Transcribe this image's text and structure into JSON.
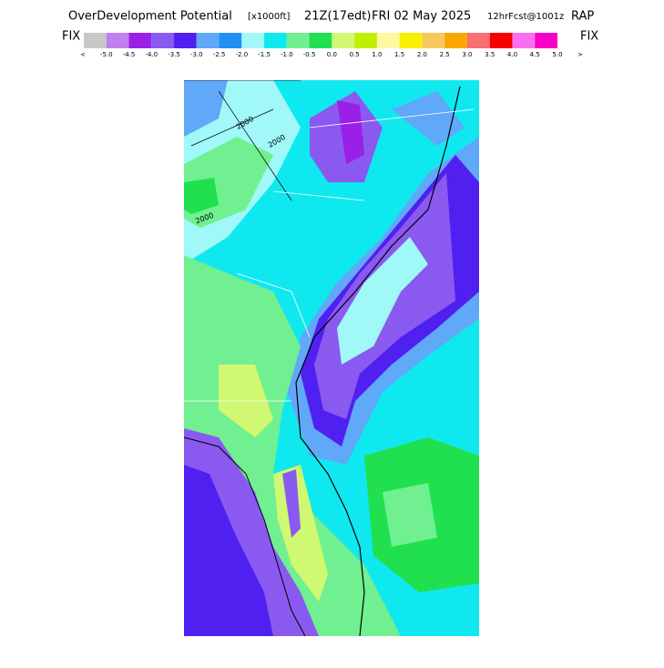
{
  "header": {
    "title": "OverDevelopment Potential",
    "units": "[x1000ft]",
    "time": "21Z(17edt)",
    "date": "FRI 02 May 2025",
    "forecast": "12hrFcst@1001z",
    "model": "RAP"
  },
  "colorbar": {
    "left_button": "FIX",
    "right_button": "FIX",
    "below": "<",
    "above": ">",
    "labels": [
      "-5.0",
      "-4.5",
      "-4.0",
      "-3.5",
      "-3.0",
      "-2.5",
      "-2.0",
      "-1.5",
      "-1.0",
      "-0.5",
      "0.0",
      "0.5",
      "1.0",
      "1.5",
      "2.0",
      "2.5",
      "3.0",
      "3.5",
      "4.0",
      "4.5",
      "5.0"
    ],
    "colors": [
      "#c8c8c8",
      "#c080f0",
      "#9a20e8",
      "#8a5af0",
      "#5020f0",
      "#60a8f8",
      "#2090f0",
      "#a0f8f8",
      "#10e8f0",
      "#70f090",
      "#20e050",
      "#d0f870",
      "#c0f000",
      "#fff8a0",
      "#f8f000",
      "#f8c860",
      "#f8a800",
      "#f87070",
      "#f80000",
      "#f870f0",
      "#f800c8"
    ]
  },
  "map": {
    "contour_labels": [
      "2000",
      "2000",
      "2000"
    ]
  }
}
